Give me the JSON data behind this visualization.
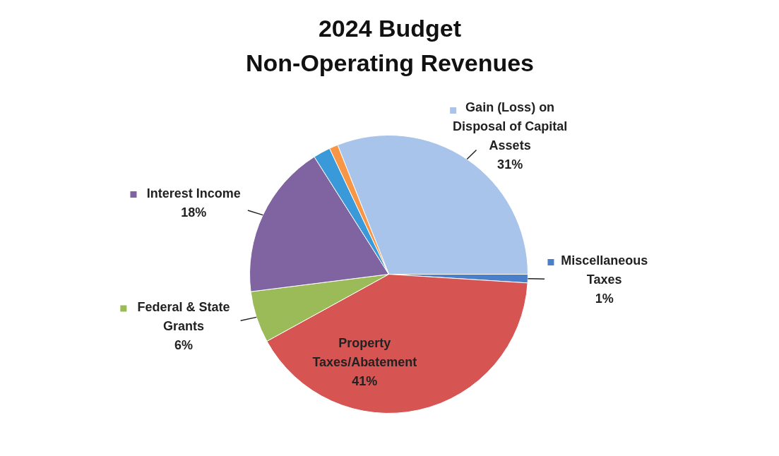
{
  "chart_data": {
    "type": "pie",
    "title": "2024 Budget\nNon-Operating Revenues",
    "categories": [
      "Gain (Loss) on\nDisposal of Capital\nAssets",
      "Miscellaneous\nTaxes",
      "Property\nTaxes/Abatement",
      "Federal & State\nGrants",
      "Interest Income",
      null,
      null
    ],
    "values": [
      31,
      1,
      41,
      6,
      18,
      2,
      1
    ],
    "value_labels": [
      "31%",
      "1%",
      "41%",
      "6%",
      "18%",
      null,
      null
    ],
    "colors": [
      "#a9c4eb",
      "#4a7fc9",
      "#d65452",
      "#9bbb59",
      "#8064a2",
      "#3a9ad9",
      "#f79646"
    ],
    "legend": true
  }
}
